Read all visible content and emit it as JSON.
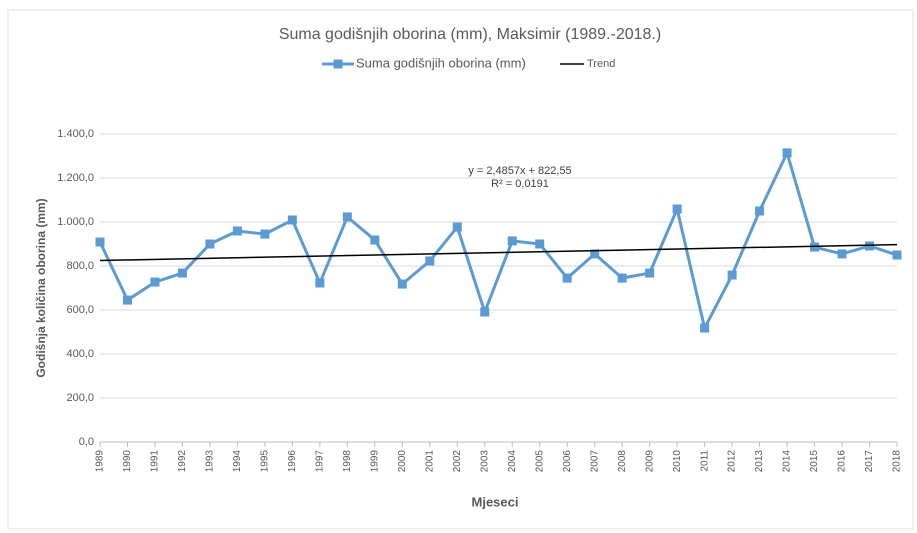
{
  "chart_data": {
    "type": "line",
    "title": "Suma godišnjih oborina (mm), Maksimir (1989.-2018.)",
    "xlabel": "Mjeseci",
    "ylabel": "Godišnja količina oborina (mm)",
    "categories": [
      "1989",
      "1990",
      "1991",
      "1992",
      "1993",
      "1994",
      "1995",
      "1996",
      "1997",
      "1998",
      "1999",
      "2000",
      "2001",
      "2002",
      "2003",
      "2004",
      "2005",
      "2006",
      "2007",
      "2008",
      "2009",
      "2010",
      "2011",
      "2012",
      "2013",
      "2014",
      "2015",
      "2016",
      "2017",
      "2018"
    ],
    "series": [
      {
        "name": "Suma godišnjih oborina (mm)",
        "color": "#5b9bd5",
        "values": [
          909,
          645,
          727,
          768,
          900,
          959,
          945,
          1009,
          723,
          1023,
          918,
          718,
          823,
          977,
          591,
          914,
          900,
          745,
          855,
          745,
          768,
          1059,
          518,
          759,
          1050,
          1314,
          886,
          855,
          891,
          850
        ]
      }
    ],
    "trend": {
      "name": "Trend",
      "color": "#000000",
      "slope": 2.4857,
      "intercept": 822.55,
      "equation": "y = 2,4857x + 822,55",
      "r2": "R² = 0,0191"
    },
    "ylim": [
      0,
      1400
    ],
    "yticks": [
      {
        "value": 0,
        "label": "0,0"
      },
      {
        "value": 200,
        "label": "200,0"
      },
      {
        "value": 400,
        "label": "400,0"
      },
      {
        "value": 600,
        "label": "600,0"
      },
      {
        "value": 800,
        "label": "800,0"
      },
      {
        "value": 1000,
        "label": "1.000,0"
      },
      {
        "value": 1200,
        "label": "1.200,0"
      },
      {
        "value": 1400,
        "label": "1.400,0"
      }
    ],
    "grid": true
  }
}
